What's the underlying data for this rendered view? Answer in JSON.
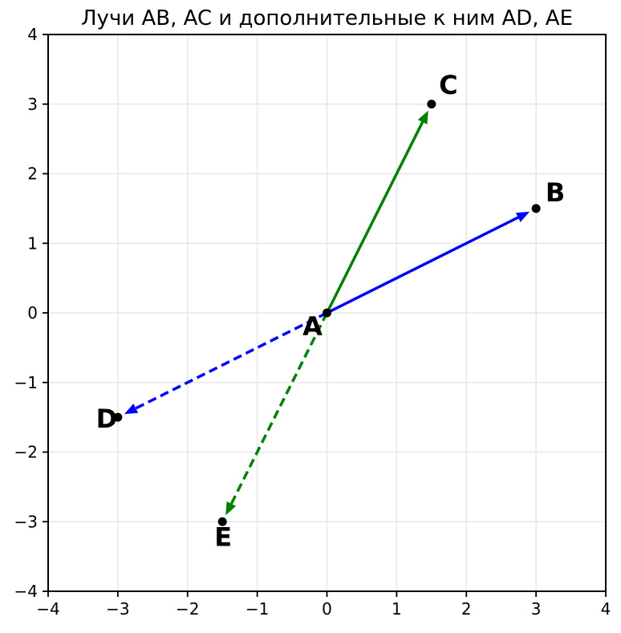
{
  "figure": {
    "title": "Лучи AB, AC и дополнительные к ним AD, AE"
  },
  "chart_data": {
    "type": "scatter",
    "title": "Лучи AB, AC и дополнительные к ним AD, AE",
    "xlabel": "",
    "ylabel": "",
    "xlim": [
      -4,
      4
    ],
    "ylim": [
      -4,
      4
    ],
    "xticks": [
      -4,
      -3,
      -2,
      -1,
      0,
      1,
      2,
      3,
      4
    ],
    "yticks": [
      -4,
      -3,
      -2,
      -1,
      0,
      1,
      2,
      3,
      4
    ],
    "grid": true,
    "legend": false,
    "points": [
      {
        "label": "A",
        "x": 0,
        "y": 0,
        "label_offset": [
          -18,
          17
        ]
      },
      {
        "label": "B",
        "x": 3,
        "y": 1.5,
        "label_offset": [
          24,
          -20
        ]
      },
      {
        "label": "C",
        "x": 1.5,
        "y": 3,
        "label_offset": [
          21,
          -24
        ]
      },
      {
        "label": "D",
        "x": -3,
        "y": -1.5,
        "label_offset": [
          -14,
          2
        ]
      },
      {
        "label": "E",
        "x": -1.5,
        "y": -3,
        "label_offset": [
          1,
          19
        ]
      }
    ],
    "rays": [
      {
        "name": "AB",
        "from": "A",
        "to": "B",
        "color": "#0000ff",
        "style": "solid"
      },
      {
        "name": "AC",
        "from": "A",
        "to": "C",
        "color": "#008000",
        "style": "solid"
      },
      {
        "name": "AD",
        "from": "A",
        "to": "D",
        "color": "#0000ff",
        "style": "dashed"
      },
      {
        "name": "AE",
        "from": "A",
        "to": "E",
        "color": "#008000",
        "style": "dashed"
      }
    ],
    "style": {
      "background": "#ffffff",
      "grid_color": "#e7e7e7",
      "axis_color": "#000000",
      "point_color": "#000000",
      "label_color": "#000000"
    }
  }
}
